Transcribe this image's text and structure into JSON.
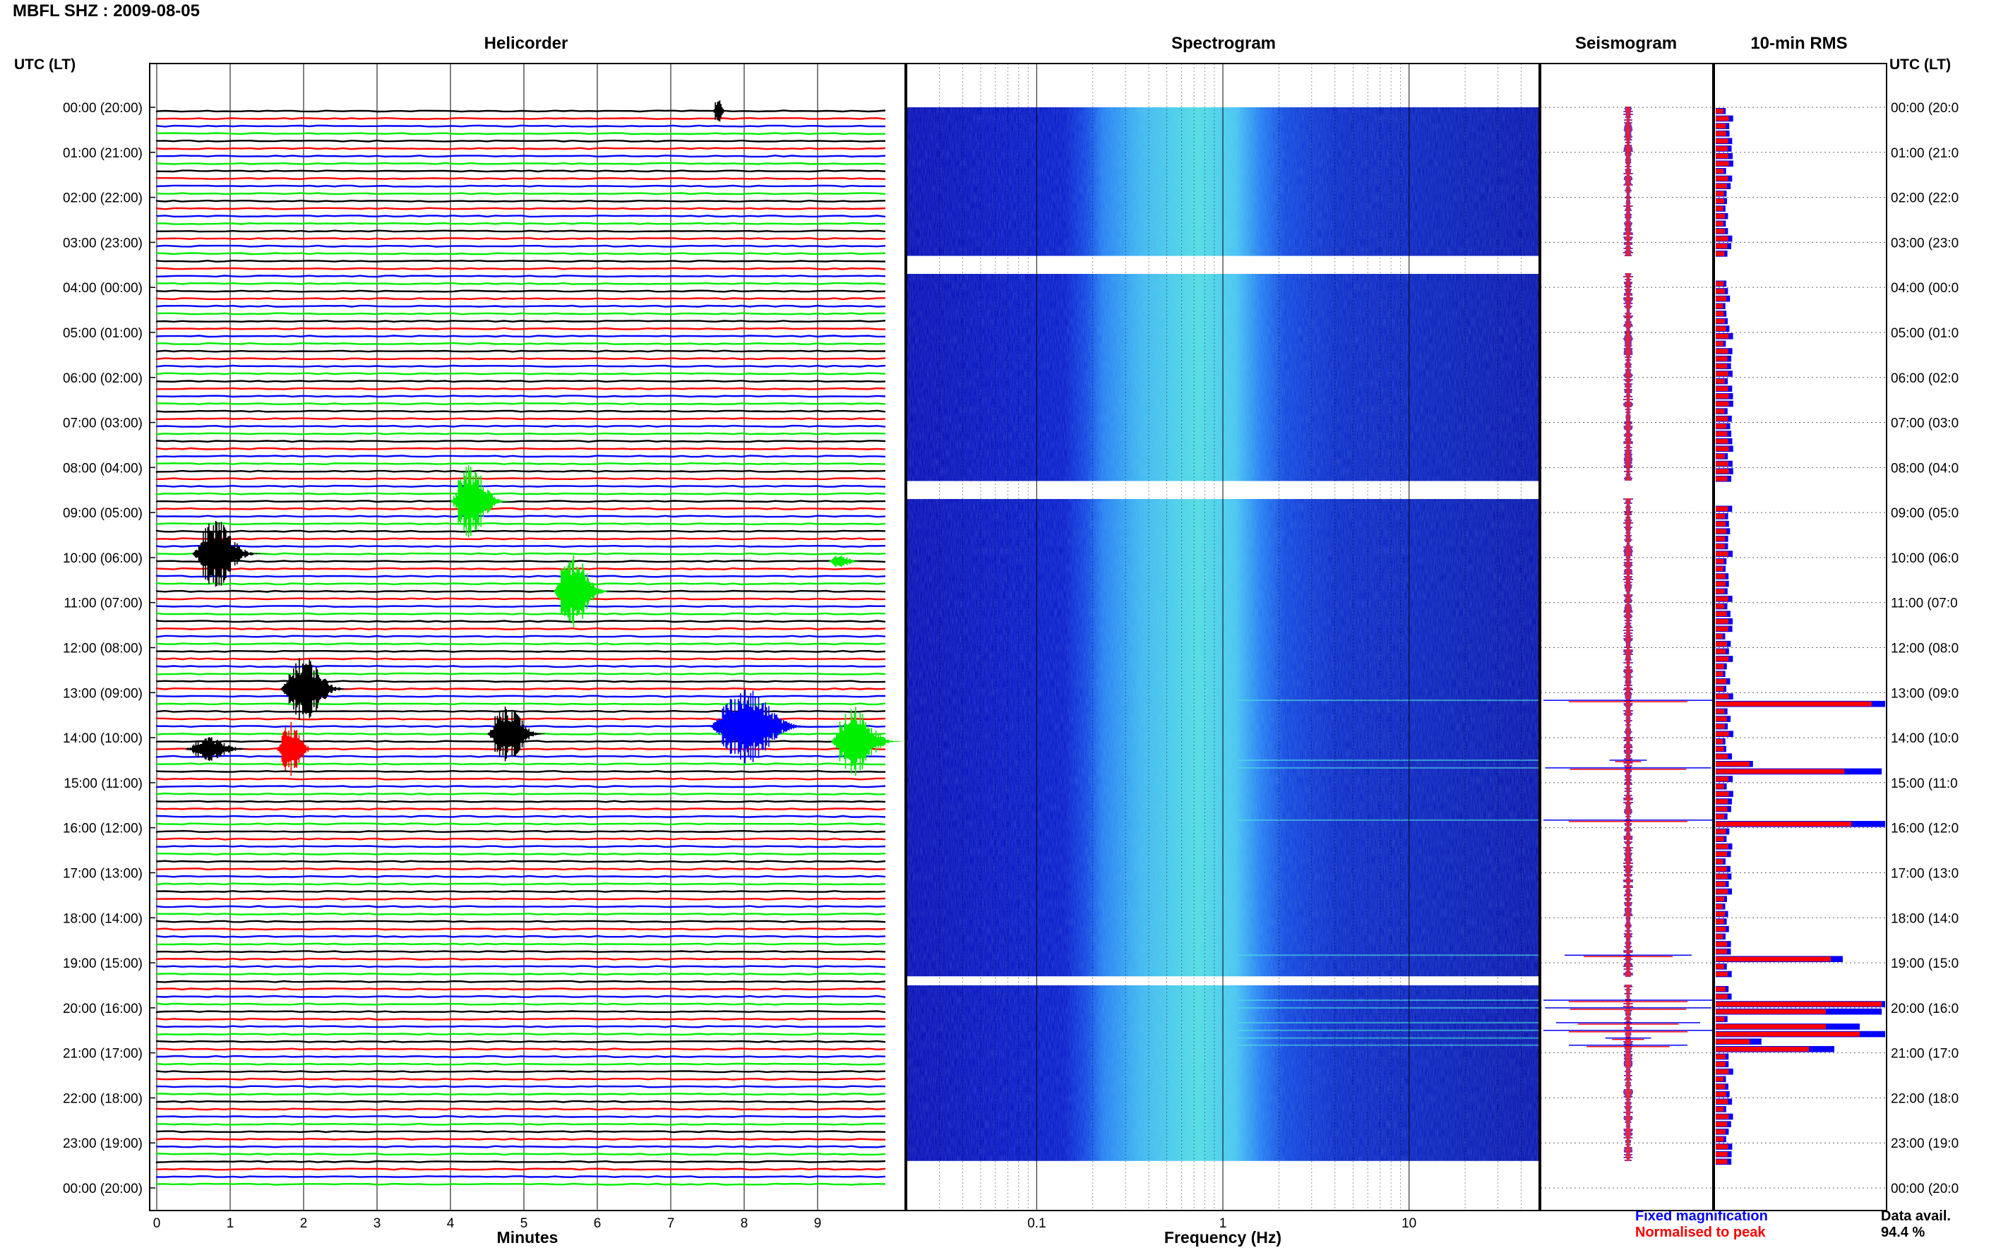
{
  "title": "MBFL SHZ : 2009-08-05",
  "panels": {
    "helicorder": "Helicorder",
    "spectrogram": "Spectrogram",
    "seismogram": "Seismogram",
    "rms": "10-min RMS"
  },
  "axis_headers": {
    "left": "UTC (LT)",
    "right": "UTC (LT)"
  },
  "time_labels": [
    "00:00 (20:00)",
    "01:00 (21:00)",
    "02:00 (22:00)",
    "03:00 (23:00)",
    "04:00 (00:00)",
    "05:00 (01:00)",
    "06:00 (02:00)",
    "07:00 (03:00)",
    "08:00 (04:00)",
    "09:00 (05:00)",
    "10:00 (06:00)",
    "11:00 (07:00)",
    "12:00 (08:00)",
    "13:00 (09:00)",
    "14:00 (10:00)",
    "15:00 (11:00)",
    "16:00 (12:00)",
    "17:00 (13:00)",
    "18:00 (14:00)",
    "19:00 (15:00)",
    "20:00 (16:00)",
    "21:00 (17:00)",
    "22:00 (18:00)",
    "23:00 (19:00)",
    "00:00 (20:00)"
  ],
  "time_labels_right": [
    "00:00 (20:0",
    "01:00 (21:0",
    "02:00 (22:0",
    "03:00 (23:0",
    "04:00 (00:0",
    "05:00 (01:0",
    "06:00 (02:0",
    "07:00 (03:0",
    "08:00 (04:0",
    "09:00 (05:0",
    "10:00 (06:0",
    "11:00 (07:0",
    "12:00 (08:0",
    "13:00 (09:0",
    "14:00 (10:0",
    "15:00 (11:0",
    "16:00 (12:0",
    "17:00 (13:0",
    "18:00 (14:0",
    "19:00 (15:0",
    "20:00 (16:0",
    "21:00 (17:0",
    "22:00 (18:0",
    "23:00 (19:0",
    "00:00 (20:0"
  ],
  "chart_data": {
    "type": "heatmap",
    "helicorder": {
      "xlabel": "Minutes",
      "xticks": [
        0,
        1,
        2,
        3,
        4,
        5,
        6,
        7,
        8,
        9
      ],
      "xlim": [
        0,
        10
      ],
      "rows_per_hour": 6,
      "trace_colors": [
        "#000000",
        "#ff0000",
        "#0000ff",
        "#00ee00"
      ],
      "events": [
        {
          "row": 0,
          "minute": 7.6,
          "amp": 0.6,
          "dur": 0.12,
          "color": "#000000"
        },
        {
          "row": 52,
          "minute": 4.1,
          "amp": 1.6,
          "dur": 0.5,
          "color": "#00ee00"
        },
        {
          "row": 59,
          "minute": 0.6,
          "amp": 1.5,
          "dur": 0.6,
          "color": "#000000"
        },
        {
          "row": 60,
          "minute": 9.2,
          "amp": 0.3,
          "dur": 0.3,
          "color": "#00ee00"
        },
        {
          "row": 64,
          "minute": 5.5,
          "amp": 1.6,
          "dur": 0.5,
          "color": "#00ee00"
        },
        {
          "row": 77,
          "minute": 1.8,
          "amp": 1.4,
          "dur": 0.6,
          "color": "#000000"
        },
        {
          "row": 82,
          "minute": 7.7,
          "amp": 1.6,
          "dur": 0.9,
          "color": "#0000ff"
        },
        {
          "row": 83,
          "minute": 4.6,
          "amp": 1.3,
          "dur": 0.5,
          "color": "#000000"
        },
        {
          "row": 84,
          "minute": 9.3,
          "amp": 1.5,
          "dur": 0.6,
          "color": "#00ee00"
        },
        {
          "row": 85,
          "minute": 0.5,
          "amp": 0.5,
          "dur": 0.6,
          "color": "#000000"
        },
        {
          "row": 85,
          "minute": 1.7,
          "amp": 1.2,
          "dur": 0.35,
          "color": "#ff0000"
        }
      ]
    },
    "spectrogram": {
      "xlabel": "Frequency (Hz)",
      "xscale": "log",
      "xlim": [
        0.02,
        50
      ],
      "xticks": [
        0.1,
        1,
        10
      ],
      "xtick_labels": [
        "0.1",
        "1",
        "10"
      ],
      "colormap": [
        "#0000b0",
        "#0a3fe0",
        "#1e7bf0",
        "#3ab8f0",
        "#4fe0e0"
      ]
    },
    "seismogram": {
      "legend": [
        "Fixed magnification",
        "Normalised to peak"
      ],
      "legend_colors": [
        "#0000ff",
        "#ff0000"
      ]
    },
    "rms": {
      "data_avail_label": "Data avail.",
      "data_avail_value": "94.4 %",
      "gaps_hours": [
        [
          3.3,
          3.7
        ],
        [
          8.3,
          8.7
        ],
        [
          19.3,
          19.5
        ]
      ],
      "spikes": [
        {
          "hour": 13.17,
          "fixed": 1.0,
          "norm": 0.92
        },
        {
          "hour": 14.5,
          "fixed": 0.22,
          "norm": 0.2
        },
        {
          "hour": 14.67,
          "fixed": 0.98,
          "norm": 0.76
        },
        {
          "hour": 15.83,
          "fixed": 1.0,
          "norm": 0.8
        },
        {
          "hour": 18.83,
          "fixed": 0.75,
          "norm": 0.68
        },
        {
          "hour": 19.83,
          "fixed": 1.0,
          "norm": 0.98
        },
        {
          "hour": 20.0,
          "fixed": 0.98,
          "norm": 0.65
        },
        {
          "hour": 20.33,
          "fixed": 0.85,
          "norm": 0.65
        },
        {
          "hour": 20.5,
          "fixed": 1.0,
          "norm": 0.85
        },
        {
          "hour": 20.67,
          "fixed": 0.27,
          "norm": 0.2
        },
        {
          "hour": 20.83,
          "fixed": 0.7,
          "norm": 0.55
        }
      ],
      "baseline": 0.08
    }
  }
}
